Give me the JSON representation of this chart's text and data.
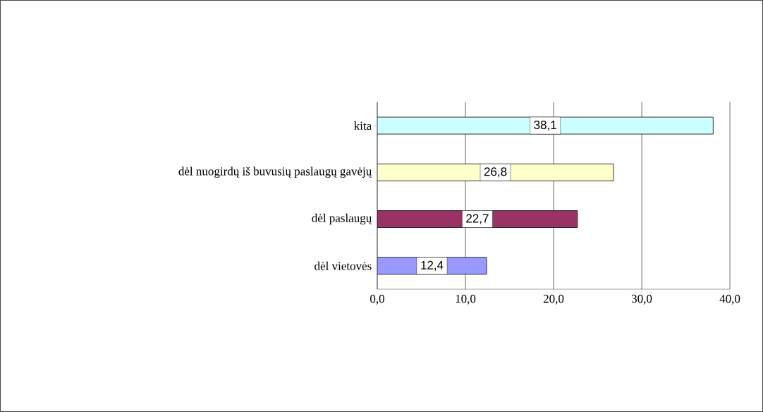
{
  "chart_data": {
    "type": "bar",
    "orientation": "horizontal",
    "categories": [
      "kita",
      "dėl nuogirdų iš buvusių paslaugų gavėjų",
      "dėl paslaugų",
      "dėl vietovės"
    ],
    "values": [
      38.1,
      26.8,
      22.7,
      12.4
    ],
    "colors": [
      "#ccffff",
      "#ffffcc",
      "#993366",
      "#9999ff"
    ],
    "value_labels": [
      "38,1",
      "26,8",
      "22,7",
      "12,4"
    ],
    "xlim": [
      0,
      40
    ],
    "xticks": [
      {
        "value": 0,
        "label": "0,0"
      },
      {
        "value": 10,
        "label": "10,0"
      },
      {
        "value": 20,
        "label": "20,0"
      },
      {
        "value": 30,
        "label": "30,0"
      },
      {
        "value": 40,
        "label": "40,0"
      }
    ],
    "grid": "x"
  }
}
